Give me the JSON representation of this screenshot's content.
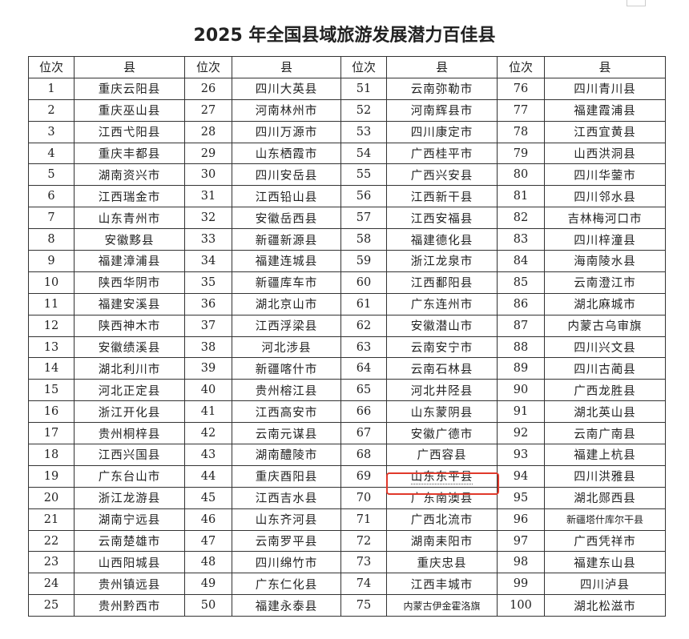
{
  "title": "2025 年全国县域旅游发展潜力百佳县",
  "headers": [
    "位次",
    "县",
    "位次",
    "县",
    "位次",
    "县",
    "位次",
    "县"
  ],
  "highlight": {
    "rank": "69",
    "color": "#e0392b"
  },
  "rows": [
    [
      "1",
      "重庆云阳县",
      "26",
      "四川大英县",
      "51",
      "云南弥勒市",
      "76",
      "四川青川县"
    ],
    [
      "2",
      "重庆巫山县",
      "27",
      "河南林州市",
      "52",
      "河南辉县市",
      "77",
      "福建霞浦县"
    ],
    [
      "3",
      "江西弋阳县",
      "28",
      "四川万源市",
      "53",
      "四川康定市",
      "78",
      "江西宜黄县"
    ],
    [
      "4",
      "重庆丰都县",
      "29",
      "山东栖霞市",
      "54",
      "广西桂平市",
      "79",
      "山西洪洞县"
    ],
    [
      "5",
      "湖南资兴市",
      "30",
      "四川安岳县",
      "55",
      "广西兴安县",
      "80",
      "四川华蓥市"
    ],
    [
      "6",
      "江西瑞金市",
      "31",
      "江西铅山县",
      "56",
      "江西新干县",
      "81",
      "四川邻水县"
    ],
    [
      "7",
      "山东青州市",
      "32",
      "安徽岳西县",
      "57",
      "江西安福县",
      "82",
      "吉林梅河口市"
    ],
    [
      "8",
      "安徽黟县",
      "33",
      "新疆新源县",
      "58",
      "福建德化县",
      "83",
      "四川梓潼县"
    ],
    [
      "9",
      "福建漳浦县",
      "34",
      "福建连城县",
      "59",
      "浙江龙泉市",
      "84",
      "海南陵水县"
    ],
    [
      "10",
      "陕西华阴市",
      "35",
      "新疆库车市",
      "60",
      "江西鄱阳县",
      "85",
      "云南澄江市"
    ],
    [
      "11",
      "福建安溪县",
      "36",
      "湖北京山市",
      "61",
      "广东连州市",
      "86",
      "湖北麻城市"
    ],
    [
      "12",
      "陕西神木市",
      "37",
      "江西浮梁县",
      "62",
      "安徽潜山市",
      "87",
      "内蒙古乌审旗"
    ],
    [
      "13",
      "安徽绩溪县",
      "38",
      "河北涉县",
      "63",
      "云南安宁市",
      "88",
      "四川兴文县"
    ],
    [
      "14",
      "湖北利川市",
      "39",
      "新疆喀什市",
      "64",
      "云南石林县",
      "89",
      "四川古蔺县"
    ],
    [
      "15",
      "河北正定县",
      "40",
      "贵州榕江县",
      "65",
      "河北井陉县",
      "90",
      "广西龙胜县"
    ],
    [
      "16",
      "浙江开化县",
      "41",
      "江西高安市",
      "66",
      "山东蒙阴县",
      "91",
      "湖北英山县"
    ],
    [
      "17",
      "贵州桐梓县",
      "42",
      "云南元谋县",
      "67",
      "安徽广德市",
      "92",
      "云南广南县"
    ],
    [
      "18",
      "江西兴国县",
      "43",
      "湖南醴陵市",
      "68",
      "广西容县",
      "93",
      "福建上杭县"
    ],
    [
      "19",
      "广东台山市",
      "44",
      "重庆酉阳县",
      "69",
      "山东东平县",
      "94",
      "四川洪雅县"
    ],
    [
      "20",
      "浙江龙游县",
      "45",
      "江西吉水县",
      "70",
      "广东南澳县",
      "95",
      "湖北郧西县"
    ],
    [
      "21",
      "湖南宁远县",
      "46",
      "山东齐河县",
      "71",
      "广西北流市",
      "96",
      "新疆塔什库尔干县"
    ],
    [
      "22",
      "云南楚雄市",
      "47",
      "云南罗平县",
      "72",
      "湖南耒阳市",
      "97",
      "广西凭祥市"
    ],
    [
      "23",
      "山西阳城县",
      "48",
      "四川绵竹市",
      "73",
      "重庆忠县",
      "98",
      "福建东山县"
    ],
    [
      "24",
      "贵州镇远县",
      "49",
      "广东仁化县",
      "74",
      "江西丰城市",
      "99",
      "四川泸县"
    ],
    [
      "25",
      "贵州黔西市",
      "50",
      "福建永泰县",
      "75",
      "内蒙古伊金霍洛旗",
      "100",
      "湖北松滋市"
    ]
  ]
}
